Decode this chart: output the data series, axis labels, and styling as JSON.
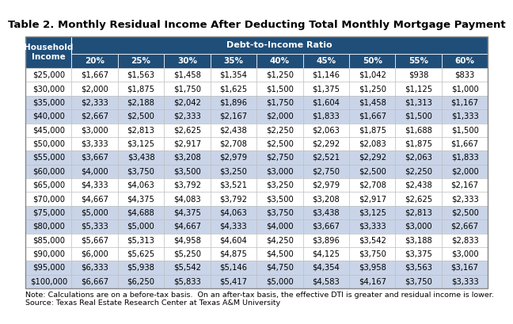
{
  "title": "Table 2. Monthly Residual Income After Deducting Total Monthly Mortgage Payment",
  "header_bg": "#1F4E79",
  "even_row_bg": "#C9D4E8",
  "odd_row_bg": "#FFFFFF",
  "border_color": "#AAAAAA",
  "title_fontsize": 9.5,
  "table_fontsize": 7.5,
  "note_fontsize": 6.8,
  "dti_ratios": [
    "20%",
    "25%",
    "30%",
    "35%",
    "40%",
    "45%",
    "50%",
    "55%",
    "60%"
  ],
  "household_incomes": [
    "$25,000",
    "$30,000",
    "$35,000",
    "$40,000",
    "$45,000",
    "$50,000",
    "$55,000",
    "$60,000",
    "$65,000",
    "$70,000",
    "$75,000",
    "$80,000",
    "$85,000",
    "$90,000",
    "$95,000",
    "$100,000"
  ],
  "row_stripes": [
    0,
    0,
    1,
    1,
    0,
    0,
    1,
    1,
    0,
    0,
    1,
    1,
    0,
    0,
    1,
    1
  ],
  "data": [
    [
      "$1,667",
      "$1,563",
      "$1,458",
      "$1,354",
      "$1,250",
      "$1,146",
      "$1,042",
      "$938",
      "$833"
    ],
    [
      "$2,000",
      "$1,875",
      "$1,750",
      "$1,625",
      "$1,500",
      "$1,375",
      "$1,250",
      "$1,125",
      "$1,000"
    ],
    [
      "$2,333",
      "$2,188",
      "$2,042",
      "$1,896",
      "$1,750",
      "$1,604",
      "$1,458",
      "$1,313",
      "$1,167"
    ],
    [
      "$2,667",
      "$2,500",
      "$2,333",
      "$2,167",
      "$2,000",
      "$1,833",
      "$1,667",
      "$1,500",
      "$1,333"
    ],
    [
      "$3,000",
      "$2,813",
      "$2,625",
      "$2,438",
      "$2,250",
      "$2,063",
      "$1,875",
      "$1,688",
      "$1,500"
    ],
    [
      "$3,333",
      "$3,125",
      "$2,917",
      "$2,708",
      "$2,500",
      "$2,292",
      "$2,083",
      "$1,875",
      "$1,667"
    ],
    [
      "$3,667",
      "$3,438",
      "$3,208",
      "$2,979",
      "$2,750",
      "$2,521",
      "$2,292",
      "$2,063",
      "$1,833"
    ],
    [
      "$4,000",
      "$3,750",
      "$3,500",
      "$3,250",
      "$3,000",
      "$2,750",
      "$2,500",
      "$2,250",
      "$2,000"
    ],
    [
      "$4,333",
      "$4,063",
      "$3,792",
      "$3,521",
      "$3,250",
      "$2,979",
      "$2,708",
      "$2,438",
      "$2,167"
    ],
    [
      "$4,667",
      "$4,375",
      "$4,083",
      "$3,792",
      "$3,500",
      "$3,208",
      "$2,917",
      "$2,625",
      "$2,333"
    ],
    [
      "$5,000",
      "$4,688",
      "$4,375",
      "$4,063",
      "$3,750",
      "$3,438",
      "$3,125",
      "$2,813",
      "$2,500"
    ],
    [
      "$5,333",
      "$5,000",
      "$4,667",
      "$4,333",
      "$4,000",
      "$3,667",
      "$3,333",
      "$3,000",
      "$2,667"
    ],
    [
      "$5,667",
      "$5,313",
      "$4,958",
      "$4,604",
      "$4,250",
      "$3,896",
      "$3,542",
      "$3,188",
      "$2,833"
    ],
    [
      "$6,000",
      "$5,625",
      "$5,250",
      "$4,875",
      "$4,500",
      "$4,125",
      "$3,750",
      "$3,375",
      "$3,000"
    ],
    [
      "$6,333",
      "$5,938",
      "$5,542",
      "$5,146",
      "$4,750",
      "$4,354",
      "$3,958",
      "$3,563",
      "$3,167"
    ],
    [
      "$6,667",
      "$6,250",
      "$5,833",
      "$5,417",
      "$5,000",
      "$4,583",
      "$4,167",
      "$3,750",
      "$3,333"
    ]
  ],
  "note_line1": "Note: Calculations are on a before-tax basis.  On an after-tax basis, the effective DTI is greater and residual income is lower.",
  "note_line2": "Source: Texas Real Estate Research Center at Texas A&M University"
}
